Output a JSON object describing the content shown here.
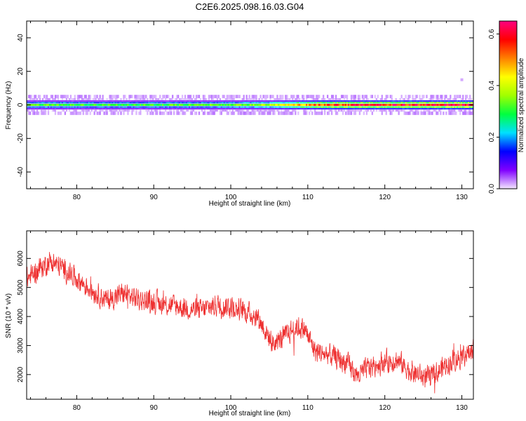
{
  "title": "C2E6.2025.098.16.03.G04",
  "chart_data": [
    {
      "type": "heatmap",
      "name": "spectrogram",
      "xlabel": "Height of straight line (km)",
      "ylabel": "Frequency (Hz)",
      "xlim": [
        73.5,
        131.5
      ],
      "ylim": [
        -50,
        50
      ],
      "xticks": [
        80,
        90,
        100,
        110,
        120,
        130
      ],
      "yticks": [
        -40,
        -20,
        0,
        20,
        40
      ],
      "grid": false,
      "band": {
        "center_hz": 0,
        "halfwidth_hz": 3,
        "amplitude_profile": [
          {
            "x": 74,
            "amp": 0.32
          },
          {
            "x": 80,
            "amp": 0.3
          },
          {
            "x": 90,
            "amp": 0.3
          },
          {
            "x": 100,
            "amp": 0.32
          },
          {
            "x": 105,
            "amp": 0.36
          },
          {
            "x": 108,
            "amp": 0.45
          },
          {
            "x": 112,
            "amp": 0.55
          },
          {
            "x": 120,
            "amp": 0.58
          },
          {
            "x": 131,
            "amp": 0.6
          }
        ]
      },
      "outliers": [
        {
          "x": 130,
          "y": 15
        }
      ]
    },
    {
      "type": "colorbar",
      "name": "colorbar",
      "label": "Normalized spectral amplitude",
      "range": [
        0,
        0.65
      ],
      "ticks": [
        0.0,
        0.2,
        0.4,
        0.6
      ],
      "tick_labels": [
        "0.0",
        "0.2",
        "0.4",
        "0.6"
      ],
      "colors": [
        "#f3e6ff",
        "#8000ff",
        "#0000ff",
        "#00e0ff",
        "#00ff40",
        "#a0ff00",
        "#ffff00",
        "#ff8000",
        "#ff0000",
        "#ff0080"
      ]
    },
    {
      "type": "line",
      "name": "snr",
      "xlabel": "Height of straight line (km)",
      "ylabel": "SNR (10 * v/v)",
      "xlim": [
        73.5,
        131.5
      ],
      "ylim": [
        1150,
        6950
      ],
      "xticks": [
        80,
        90,
        100,
        110,
        120,
        130
      ],
      "yticks": [
        2000,
        3000,
        4000,
        5000,
        6000
      ],
      "grid": false,
      "color": "#ee3030",
      "trend": [
        {
          "x": 73.5,
          "y": 5300
        },
        {
          "x": 75.0,
          "y": 5600
        },
        {
          "x": 76.5,
          "y": 5900
        },
        {
          "x": 78.0,
          "y": 5700
        },
        {
          "x": 80.0,
          "y": 5300
        },
        {
          "x": 82.0,
          "y": 4900
        },
        {
          "x": 84.0,
          "y": 4550
        },
        {
          "x": 86.0,
          "y": 4800
        },
        {
          "x": 88.0,
          "y": 4600
        },
        {
          "x": 90.0,
          "y": 4500
        },
        {
          "x": 92.0,
          "y": 4400
        },
        {
          "x": 94.0,
          "y": 4300
        },
        {
          "x": 96.0,
          "y": 4200
        },
        {
          "x": 98.0,
          "y": 4400
        },
        {
          "x": 100.0,
          "y": 4350
        },
        {
          "x": 102.0,
          "y": 4150
        },
        {
          "x": 103.5,
          "y": 4000
        },
        {
          "x": 104.5,
          "y": 3500
        },
        {
          "x": 105.5,
          "y": 3050
        },
        {
          "x": 107.0,
          "y": 3300
        },
        {
          "x": 108.5,
          "y": 3650
        },
        {
          "x": 109.5,
          "y": 3600
        },
        {
          "x": 111.0,
          "y": 2800
        },
        {
          "x": 113.0,
          "y": 2650
        },
        {
          "x": 115.0,
          "y": 2400
        },
        {
          "x": 116.5,
          "y": 1950
        },
        {
          "x": 118.0,
          "y": 2250
        },
        {
          "x": 120.0,
          "y": 2450
        },
        {
          "x": 121.5,
          "y": 2500
        },
        {
          "x": 123.0,
          "y": 2200
        },
        {
          "x": 124.5,
          "y": 1950
        },
        {
          "x": 126.0,
          "y": 1900
        },
        {
          "x": 128.0,
          "y": 2350
        },
        {
          "x": 130.0,
          "y": 2650
        },
        {
          "x": 131.5,
          "y": 2800
        }
      ],
      "noise_amplitude": 330
    }
  ]
}
